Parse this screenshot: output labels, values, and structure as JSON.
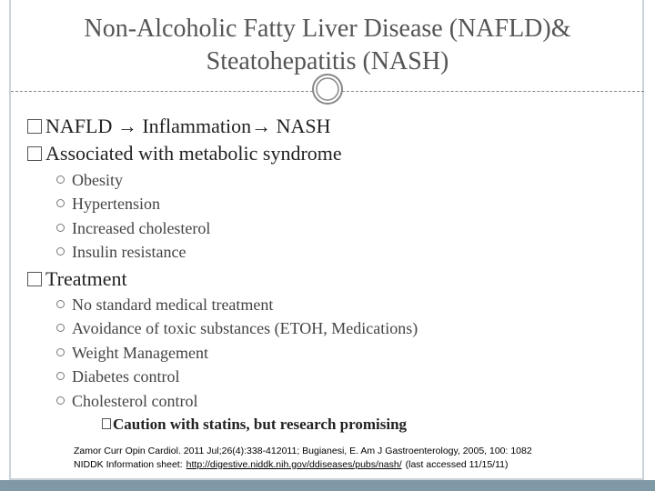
{
  "title": [
    "Non-Alcoholic Fatty Liver Disease  (NAFLD)&",
    "Steatohepatitis (NASH)"
  ],
  "bullets": [
    {
      "text": "NAFLD → Inflammation→ NASH"
    },
    {
      "text": "Associated with metabolic syndrome",
      "items": [
        "Obesity",
        "Hypertension",
        "Increased cholesterol",
        "Insulin resistance"
      ]
    },
    {
      "text": "Treatment",
      "items": [
        "No standard medical treatment",
        "Avoidance of toxic substances (ETOH, Medications)",
        "Weight Management",
        "Diabetes control",
        "Cholesterol control"
      ],
      "note": "Caution with statins, but research promising"
    }
  ],
  "references": {
    "line1": "Zamor Curr Opin Cardiol. 2011 Jul;26(4):338-412011; Bugianesi, E. Am J Gastroenterology, 2005, 100: 1082",
    "prefix": "NIDDK Information sheet:",
    "link": "http://digestive.niddk.nih.gov/ddiseases/pubs/nash/",
    "suffix": "(last accessed 11/15/11)"
  }
}
